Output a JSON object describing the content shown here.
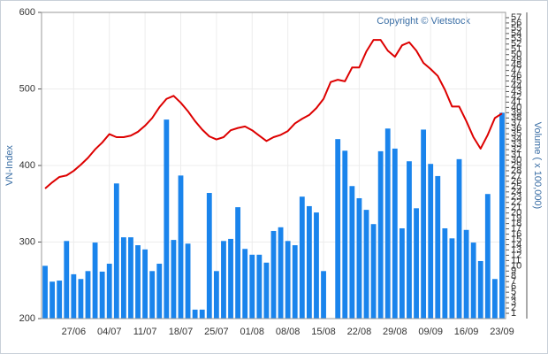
{
  "chart_data": {
    "type": "combo",
    "watermark": "Copyright © Vietstock",
    "ylabel": "VN-Index",
    "y2label": "Volume ( x 100,000)",
    "categories": [
      null,
      null,
      null,
      null,
      "27/06",
      null,
      null,
      null,
      null,
      "04/07",
      null,
      null,
      null,
      null,
      "11/07",
      null,
      null,
      null,
      null,
      "18/07",
      null,
      null,
      null,
      null,
      "25/07",
      null,
      null,
      null,
      null,
      "01/08",
      null,
      null,
      null,
      null,
      "08/08",
      null,
      null,
      null,
      null,
      "15/08",
      null,
      null,
      null,
      null,
      "22/08",
      null,
      null,
      null,
      null,
      "29/08",
      null,
      null,
      null,
      null,
      "09/09",
      null,
      null,
      null,
      null,
      "16/09",
      null,
      null,
      null,
      null,
      "23/09"
    ],
    "series": [
      {
        "type": "bar",
        "axis": "y2",
        "color": "#1a84ec",
        "values": [
          10,
          7,
          7.2,
          14.7,
          8.4,
          7.5,
          9,
          14.4,
          8.9,
          10.4,
          25.6,
          15.4,
          15.4,
          13.9,
          13.1,
          9,
          10.4,
          37.7,
          14.9,
          27.1,
          14.2,
          1.7,
          1.7,
          23.8,
          9,
          14.7,
          15.1,
          21.1,
          13.2,
          12.1,
          12.1,
          10.6,
          16.6,
          17.3,
          14.7,
          13.9,
          23.1,
          21.3,
          20.1,
          9,
          0,
          34,
          31.8,
          25.1,
          22.8,
          20.6,
          17.9,
          31.7,
          36,
          32.2,
          17.1,
          29.8,
          20.9,
          35.8,
          29.3,
          27,
          17.1,
          15.2,
          30.2,
          16.8,
          14.4,
          10.9,
          23.6,
          7.5,
          39
        ]
      },
      {
        "type": "line",
        "color": "#dd0000",
        "values": [
          370,
          378,
          385,
          387,
          393,
          401,
          410,
          421,
          430,
          441,
          437,
          437,
          439,
          444,
          452,
          462,
          476,
          487,
          491,
          482,
          471,
          458,
          447,
          438,
          434,
          437,
          446,
          449,
          451,
          446,
          439,
          432,
          437,
          440,
          445,
          455,
          461,
          466,
          475,
          487,
          509,
          512,
          510,
          528,
          528,
          549,
          564,
          564,
          550,
          542,
          557,
          561,
          550,
          534,
          526,
          517,
          499,
          477,
          477,
          458,
          437,
          422,
          440,
          462,
          468
        ]
      }
    ],
    "ylim": [
      200,
      600
    ],
    "yticks": [
      200,
      300,
      400,
      500,
      600
    ],
    "y2lim": [
      0,
      58
    ],
    "y2ticks": [
      1,
      2,
      3,
      4,
      5,
      6,
      7,
      8,
      9,
      10,
      11,
      12,
      13,
      14,
      15,
      16,
      17,
      18,
      19,
      20,
      21,
      22,
      23,
      24,
      25,
      26,
      27,
      28,
      29,
      30,
      31,
      32,
      33,
      34,
      35,
      36,
      37,
      38,
      39,
      40,
      41,
      42,
      43,
      44,
      45,
      46,
      47,
      48,
      49,
      50,
      51,
      52,
      53,
      54,
      55,
      56,
      57
    ],
    "grid": true
  }
}
